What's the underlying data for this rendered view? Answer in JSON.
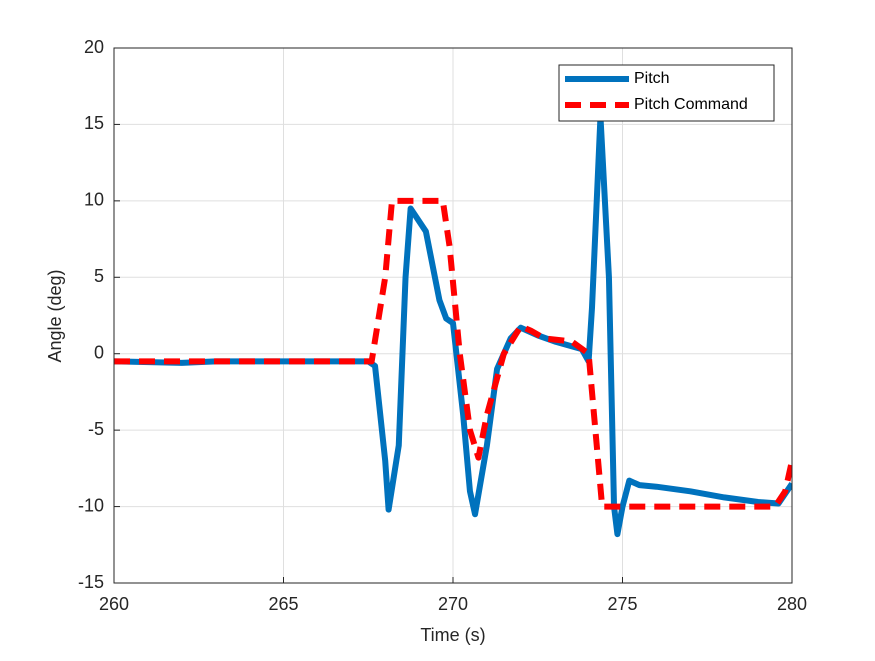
{
  "chart_data": {
    "type": "line",
    "xlabel": "Time (s)",
    "ylabel": "Angle (deg)",
    "xlim": [
      260,
      280
    ],
    "xticks": [
      260,
      265,
      270,
      275,
      280
    ],
    "ylim": [
      -15,
      20
    ],
    "yticks": [
      -15,
      -10,
      -5,
      0,
      5,
      10,
      15,
      20
    ],
    "grid": true,
    "legend_position": "northeast",
    "series": [
      {
        "name": "Pitch",
        "color": "#0072bd",
        "style": "solid",
        "x": [
          260,
          262,
          263,
          265,
          267.5,
          267.7,
          268.0,
          268.1,
          268.4,
          268.6,
          268.75,
          269.2,
          269.6,
          269.8,
          270.0,
          270.3,
          270.5,
          270.65,
          271.0,
          271.3,
          271.7,
          272.0,
          272.5,
          273.0,
          273.8,
          274.0,
          274.1,
          274.35,
          274.6,
          274.75,
          274.85,
          275.0,
          275.2,
          275.5,
          276,
          277,
          278,
          279,
          279.6,
          280
        ],
        "values": [
          -0.5,
          -0.6,
          -0.5,
          -0.5,
          -0.5,
          -0.8,
          -7,
          -10.2,
          -6,
          5,
          9.5,
          8,
          3.5,
          2.3,
          2.0,
          -4,
          -9,
          -10.5,
          -6,
          -1,
          1,
          1.7,
          1.2,
          0.8,
          0.3,
          -0.5,
          3,
          15.5,
          5,
          -10,
          -11.8,
          -10,
          -8.3,
          -8.6,
          -8.7,
          -9,
          -9.4,
          -9.7,
          -9.8,
          -8.5
        ]
      },
      {
        "name": "Pitch Command",
        "color": "#ff0000",
        "style": "dashed",
        "x": [
          260,
          267.6,
          268.0,
          268.2,
          269.7,
          269.9,
          270.2,
          270.5,
          270.75,
          271.0,
          271.5,
          272.0,
          272.3,
          272.7,
          273.5,
          274.0,
          274.2,
          274.4,
          275.0,
          279.5,
          279.8,
          280
        ],
        "values": [
          -0.5,
          -0.5,
          5,
          10,
          10,
          7,
          0,
          -5,
          -6.8,
          -4,
          0,
          1.8,
          1.5,
          1,
          0.8,
          0,
          -5,
          -10,
          -10,
          -10,
          -9,
          -7
        ]
      }
    ]
  }
}
